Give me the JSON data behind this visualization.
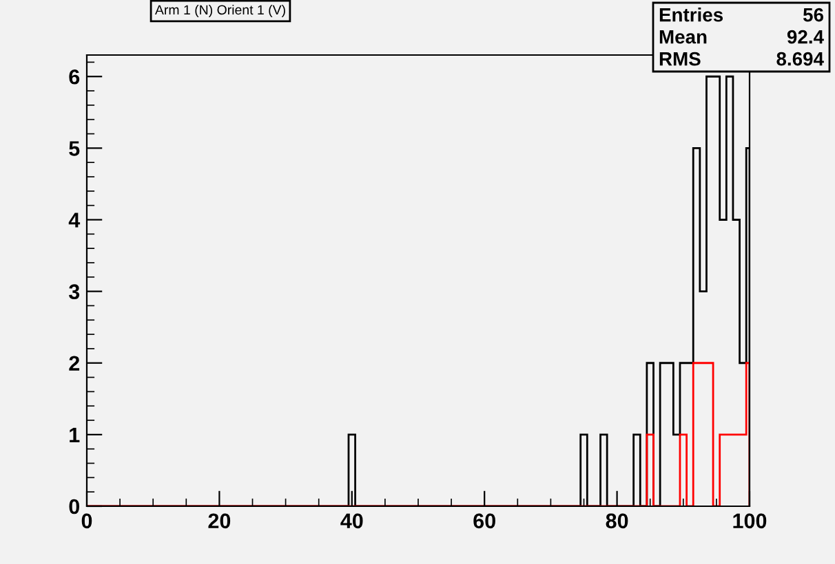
{
  "chart_data": {
    "type": "histogram",
    "title": "Arm 1 (N) Orient 1 (V)",
    "annotations": [
      "Entries 56",
      "Mean 92.4",
      "RMS 8.694"
    ],
    "bins": [
      0,
      39.5,
      40.5,
      74.5,
      75.5,
      77.5,
      78.5,
      82.5,
      83.5,
      84.5,
      85.5,
      86.5,
      88.5,
      89.5,
      90.5,
      91.5,
      92.5,
      93.5,
      94.5,
      95.5,
      96.5,
      97.5,
      98.5,
      99.5,
      100
    ],
    "series": [
      {
        "color": "#000000",
        "values": [
          0,
          1,
          0,
          1,
          0,
          1,
          0,
          1,
          0,
          2,
          0,
          2,
          1,
          2,
          2,
          5,
          3,
          6,
          6,
          4,
          6,
          4,
          2,
          5
        ]
      },
      {
        "color": "#ff0000",
        "values": [
          0,
          0,
          0,
          0,
          0,
          0,
          0,
          0,
          0,
          1,
          0,
          0,
          0,
          1,
          0,
          2,
          2,
          2,
          0,
          1,
          1,
          1,
          1,
          2
        ]
      }
    ],
    "xlim": [
      0,
      100
    ],
    "xticks": [
      0,
      20,
      40,
      60,
      80,
      100
    ],
    "ylim": [
      0,
      6.3
    ],
    "yticks": [
      0,
      1,
      2,
      3,
      4,
      5,
      6
    ],
    "grid": false,
    "legend": false
  }
}
